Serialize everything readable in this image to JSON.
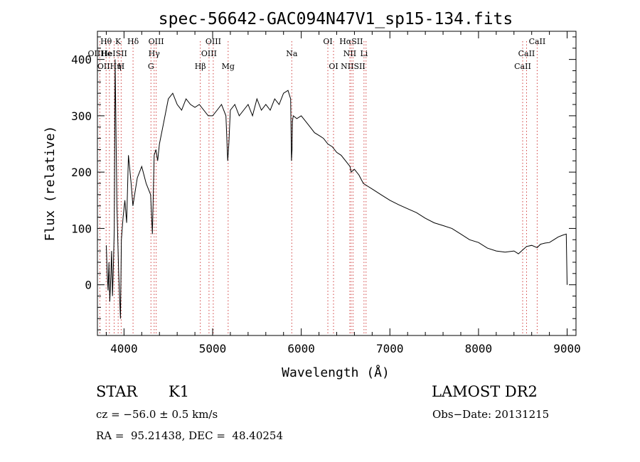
{
  "chart_data": {
    "type": "line",
    "title": "spec-56642-GAC094N47V1_sp15-134.fits",
    "xlabel": "Wavelength (Å)",
    "ylabel": "Flux (relative)",
    "xlim": [
      3700,
      9100
    ],
    "ylim": [
      -90,
      450
    ],
    "x_ticks": [
      4000,
      5000,
      6000,
      7000,
      8000,
      9000
    ],
    "y_ticks": [
      0,
      100,
      200,
      300,
      400
    ],
    "grid": false,
    "legend": "none",
    "line_color": "#000000",
    "marker_color": "#d04040",
    "series": [
      {
        "x": [
          3800,
          3810,
          3820,
          3830,
          3840,
          3850,
          3860,
          3870,
          3880,
          3890,
          3900,
          3920,
          3940,
          3960,
          3970,
          3990,
          4010,
          4030,
          4050,
          4080,
          4100,
          4120,
          4150,
          4200,
          4250,
          4300,
          4320,
          4340,
          4360,
          4380,
          4400,
          4450,
          4500,
          4550,
          4600,
          4650,
          4700,
          4750,
          4800,
          4850,
          4900,
          4950,
          5000,
          5050,
          5100,
          5150,
          5170,
          5183,
          5200,
          5250,
          5300,
          5350,
          5400,
          5450,
          5500,
          5550,
          5600,
          5650,
          5700,
          5750,
          5800,
          5850,
          5880,
          5890,
          5896,
          5900,
          5910,
          5950,
          6000,
          6050,
          6100,
          6150,
          6200,
          6250,
          6300,
          6350,
          6400,
          6450,
          6500,
          6550,
          6563,
          6600,
          6650,
          6700,
          6750,
          6800,
          6900,
          7000,
          7100,
          7200,
          7300,
          7400,
          7500,
          7600,
          7700,
          7800,
          7900,
          8000,
          8100,
          8200,
          8300,
          8400,
          8450,
          8500,
          8542,
          8600,
          8662,
          8700,
          8750,
          8800,
          8850,
          8900,
          8950,
          8990,
          9000
        ],
        "y": [
          70,
          20,
          -10,
          40,
          -30,
          10,
          60,
          -20,
          30,
          100,
          400,
          140,
          20,
          -60,
          80,
          120,
          150,
          110,
          230,
          180,
          140,
          160,
          190,
          210,
          180,
          160,
          90,
          230,
          240,
          220,
          250,
          290,
          330,
          340,
          320,
          310,
          330,
          320,
          315,
          320,
          310,
          300,
          300,
          310,
          320,
          300,
          220,
          250,
          310,
          320,
          300,
          310,
          320,
          300,
          330,
          310,
          320,
          310,
          330,
          320,
          340,
          345,
          330,
          220,
          240,
          290,
          300,
          295,
          300,
          290,
          280,
          270,
          265,
          260,
          250,
          245,
          235,
          230,
          220,
          210,
          200,
          205,
          195,
          180,
          175,
          170,
          160,
          150,
          142,
          135,
          128,
          118,
          110,
          105,
          100,
          90,
          80,
          75,
          65,
          60,
          58,
          60,
          55,
          62,
          68,
          70,
          66,
          72,
          74,
          75,
          80,
          85,
          88,
          90,
          0
        ]
      }
    ],
    "line_markers": [
      {
        "label": "Hθ",
        "x": 3798,
        "row": 0
      },
      {
        "label": "K",
        "x": 3934,
        "row": 0
      },
      {
        "label": "Hδ",
        "x": 4102,
        "row": 0
      },
      {
        "label": "OIII",
        "x": 4363,
        "row": 0
      },
      {
        "label": "OIII",
        "x": 5007,
        "row": 0
      },
      {
        "label": "OI",
        "x": 6300,
        "row": 0
      },
      {
        "label": "HαSII",
        "x": 6563,
        "row": 0
      },
      {
        "label": "CaII",
        "x": 8662,
        "row": 0
      },
      {
        "label": "OIIHe",
        "x": 3727,
        "row": 1
      },
      {
        "label": "HeISII",
        "x": 3889,
        "row": 1
      },
      {
        "label": "Hγ",
        "x": 4340,
        "row": 1
      },
      {
        "label": "OIII",
        "x": 4959,
        "row": 1
      },
      {
        "label": "Na",
        "x": 5893,
        "row": 1
      },
      {
        "label": "NII",
        "x": 6548,
        "row": 1
      },
      {
        "label": "Li",
        "x": 6708,
        "row": 1
      },
      {
        "label": "CaII",
        "x": 8542,
        "row": 1
      },
      {
        "label": "OIIHη",
        "x": 3835,
        "row": 2
      },
      {
        "label": "H",
        "x": 3968,
        "row": 2
      },
      {
        "label": "G",
        "x": 4304,
        "row": 2
      },
      {
        "label": "Hβ",
        "x": 4861,
        "row": 2
      },
      {
        "label": "Mg",
        "x": 5175,
        "row": 2
      },
      {
        "label": "OI",
        "x": 6364,
        "row": 2
      },
      {
        "label": "NIISII",
        "x": 6584,
        "row": 2
      },
      {
        "label": "CaII",
        "x": 8498,
        "row": 2
      }
    ],
    "dotted_lines_x": [
      3727,
      3798,
      3835,
      3889,
      3934,
      3968,
      4102,
      4304,
      4340,
      4363,
      4861,
      4959,
      5007,
      5175,
      5893,
      6300,
      6364,
      6548,
      6563,
      6584,
      6708,
      6731,
      8498,
      8542,
      8662
    ]
  },
  "info": {
    "object_class": "STAR",
    "subclass": "K1",
    "survey": "LAMOST DR2",
    "redshift": "cz = −56.0 ± 0.5 km/s",
    "obs_date": "Obs−Date: 20131215",
    "coords": "RA =  95.21438, DEC =  48.40254"
  }
}
